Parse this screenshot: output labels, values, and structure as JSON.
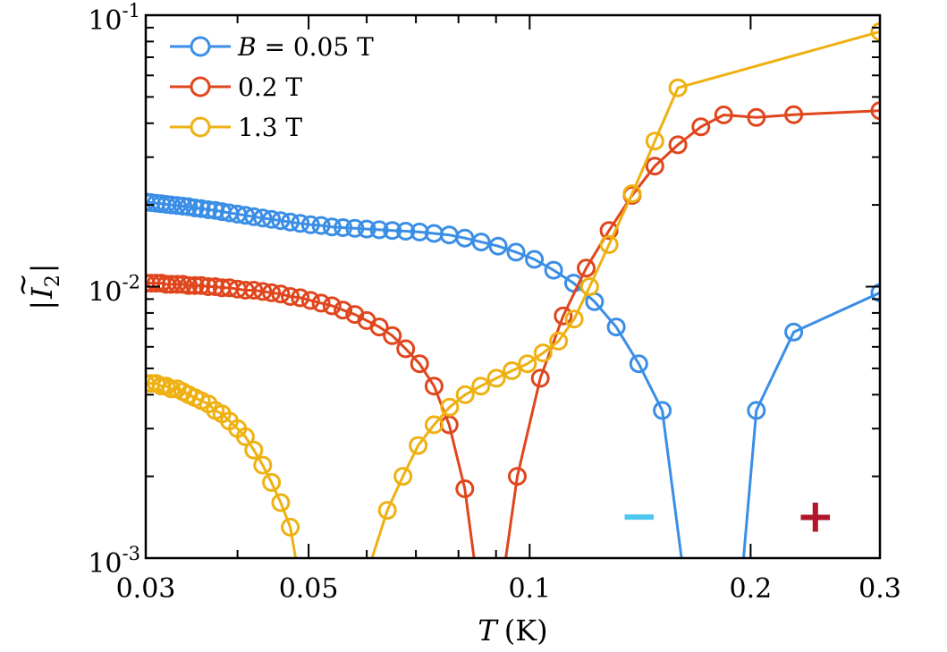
{
  "chart_data": {
    "type": "line",
    "title": "",
    "xlabel_var": "T",
    "xlabel_unit": "(K)",
    "ylabel_bar": "|",
    "ylabel_tilde": "~",
    "ylabel_var": "I",
    "ylabel_sub": "2",
    "xscale": "log",
    "yscale": "log",
    "xlim": [
      0.03,
      0.3
    ],
    "ylim": [
      0.001,
      0.1
    ],
    "x_ticks": [
      {
        "value": 0.03,
        "label": "0.03"
      },
      {
        "value": 0.05,
        "label": "0.05"
      },
      {
        "value": 0.1,
        "label": "0.1"
      },
      {
        "value": 0.2,
        "label": "0.2"
      },
      {
        "value": 0.3,
        "label": "0.3"
      }
    ],
    "y_ticks": [
      {
        "value": 0.1,
        "base": "10",
        "exp": "-1"
      },
      {
        "value": 0.01,
        "base": "10",
        "exp": "-2"
      },
      {
        "value": 0.001,
        "base": "10",
        "exp": "-3"
      }
    ],
    "legend_position": "top-left",
    "series": [
      {
        "name": "B = 0.05 T",
        "legend_var": "B",
        "legend_rest": " = 0.05 T",
        "color": "#3a8ee6",
        "points": [
          [
            0.03,
            0.0205
          ],
          [
            0.0305,
            0.0204
          ],
          [
            0.031,
            0.0203
          ],
          [
            0.0315,
            0.0202
          ],
          [
            0.032,
            0.0201
          ],
          [
            0.0325,
            0.02
          ],
          [
            0.0331,
            0.0199
          ],
          [
            0.0337,
            0.0198
          ],
          [
            0.0343,
            0.0197
          ],
          [
            0.035,
            0.0195
          ],
          [
            0.0357,
            0.0194
          ],
          [
            0.0365,
            0.0192
          ],
          [
            0.0373,
            0.0191
          ],
          [
            0.0381,
            0.0189
          ],
          [
            0.039,
            0.0187
          ],
          [
            0.04,
            0.0185
          ],
          [
            0.041,
            0.0183
          ],
          [
            0.0421,
            0.0181
          ],
          [
            0.0433,
            0.0179
          ],
          [
            0.0445,
            0.0177
          ],
          [
            0.0458,
            0.0175
          ],
          [
            0.0472,
            0.0173
          ],
          [
            0.0487,
            0.0171
          ],
          [
            0.0503,
            0.0169
          ],
          [
            0.052,
            0.0168
          ],
          [
            0.0538,
            0.0166
          ],
          [
            0.0557,
            0.0165
          ],
          [
            0.0578,
            0.0164
          ],
          [
            0.06,
            0.0163
          ],
          [
            0.0624,
            0.0162
          ],
          [
            0.065,
            0.0161
          ],
          [
            0.0678,
            0.016
          ],
          [
            0.0708,
            0.0159
          ],
          [
            0.0741,
            0.0157
          ],
          [
            0.0777,
            0.0155
          ],
          [
            0.0816,
            0.0151
          ],
          [
            0.0859,
            0.0146
          ],
          [
            0.0906,
            0.0141
          ],
          [
            0.0958,
            0.0134
          ],
          [
            0.1015,
            0.0126
          ],
          [
            0.1078,
            0.0115
          ],
          [
            0.1148,
            0.0103
          ],
          [
            0.1226,
            0.0088
          ],
          [
            0.1312,
            0.0071
          ],
          [
            0.1408,
            0.0052
          ],
          [
            0.1516,
            0.0035
          ],
          [
            0.161,
            0.001
          ]
        ],
        "points_after": [
          [
            0.1956,
            0.001
          ],
          [
            0.2036,
            0.0035
          ],
          [
            0.2289,
            0.0068
          ],
          [
            0.3,
            0.0095
          ]
        ]
      },
      {
        "name": "0.2 T",
        "legend_var": "",
        "legend_rest": "0.2 T",
        "color": "#e0461d",
        "points": [
          [
            0.03,
            0.0103
          ],
          [
            0.0305,
            0.0103
          ],
          [
            0.031,
            0.0103
          ],
          [
            0.0315,
            0.0103
          ],
          [
            0.032,
            0.0102
          ],
          [
            0.0325,
            0.0102
          ],
          [
            0.0331,
            0.0102
          ],
          [
            0.0337,
            0.0102
          ],
          [
            0.0343,
            0.0101
          ],
          [
            0.035,
            0.0101
          ],
          [
            0.0357,
            0.0101
          ],
          [
            0.0365,
            0.01
          ],
          [
            0.0373,
            0.01
          ],
          [
            0.0381,
            0.0099
          ],
          [
            0.039,
            0.0099
          ],
          [
            0.04,
            0.0098
          ],
          [
            0.041,
            0.0097
          ],
          [
            0.0421,
            0.0097
          ],
          [
            0.0433,
            0.0096
          ],
          [
            0.0445,
            0.0095
          ],
          [
            0.0458,
            0.0094
          ],
          [
            0.0472,
            0.0092
          ],
          [
            0.0487,
            0.0091
          ],
          [
            0.0503,
            0.0089
          ],
          [
            0.052,
            0.0087
          ],
          [
            0.0538,
            0.0085
          ],
          [
            0.0557,
            0.0082
          ],
          [
            0.0578,
            0.0079
          ],
          [
            0.06,
            0.0075
          ],
          [
            0.0624,
            0.0071
          ],
          [
            0.065,
            0.0066
          ],
          [
            0.0678,
            0.0059
          ],
          [
            0.0708,
            0.0052
          ],
          [
            0.0741,
            0.0043
          ],
          [
            0.0777,
            0.0031
          ],
          [
            0.0816,
            0.0018
          ],
          [
            0.084,
            0.001
          ]
        ],
        "points_after": [
          [
            0.0928,
            0.001
          ],
          [
            0.0962,
            0.002
          ],
          [
            0.1034,
            0.0046
          ],
          [
            0.1111,
            0.0078
          ],
          [
            0.1194,
            0.0117
          ],
          [
            0.1283,
            0.0161
          ],
          [
            0.1379,
            0.0217
          ],
          [
            0.1481,
            0.0278
          ],
          [
            0.1592,
            0.0333
          ],
          [
            0.1711,
            0.0388
          ],
          [
            0.1838,
            0.0429
          ],
          [
            0.2036,
            0.042
          ],
          [
            0.2289,
            0.043
          ],
          [
            0.3,
            0.0445
          ]
        ]
      },
      {
        "name": "1.3 T",
        "legend_var": "",
        "legend_rest": "1.3 T",
        "color": "#eeb111",
        "points": [
          [
            0.03,
            0.0044
          ],
          [
            0.0305,
            0.0044
          ],
          [
            0.031,
            0.0044
          ],
          [
            0.0315,
            0.0043
          ],
          [
            0.032,
            0.0043
          ],
          [
            0.0325,
            0.0042
          ],
          [
            0.0331,
            0.0042
          ],
          [
            0.0337,
            0.0041
          ],
          [
            0.0343,
            0.004
          ],
          [
            0.035,
            0.0039
          ],
          [
            0.0357,
            0.0038
          ],
          [
            0.0365,
            0.0037
          ],
          [
            0.0373,
            0.0035
          ],
          [
            0.0381,
            0.0034
          ],
          [
            0.039,
            0.0032
          ],
          [
            0.04,
            0.003
          ],
          [
            0.041,
            0.0028
          ],
          [
            0.0421,
            0.0025
          ],
          [
            0.0433,
            0.0022
          ],
          [
            0.0445,
            0.0019
          ],
          [
            0.0458,
            0.0016
          ],
          [
            0.0472,
            0.0013
          ],
          [
            0.048,
            0.001
          ]
        ],
        "points_after": [
          [
            0.061,
            0.001
          ],
          [
            0.064,
            0.0015
          ],
          [
            0.0672,
            0.002
          ],
          [
            0.0705,
            0.0026
          ],
          [
            0.0741,
            0.0031
          ],
          [
            0.0778,
            0.0036
          ],
          [
            0.0817,
            0.004
          ],
          [
            0.0858,
            0.0043
          ],
          [
            0.0901,
            0.0046
          ],
          [
            0.0946,
            0.0049
          ],
          [
            0.0993,
            0.0052
          ],
          [
            0.1043,
            0.0057
          ],
          [
            0.1095,
            0.0063
          ],
          [
            0.115,
            0.0076
          ],
          [
            0.1207,
            0.01
          ],
          [
            0.1283,
            0.0143
          ],
          [
            0.1379,
            0.022
          ],
          [
            0.1481,
            0.0344
          ],
          [
            0.1592,
            0.054
          ],
          [
            0.3,
            0.087
          ]
        ]
      }
    ],
    "annotations": [
      {
        "text": "−",
        "x": 0.141,
        "y": 0.00139,
        "color": "#4fc8f0"
      },
      {
        "text": "+",
        "x": 0.245,
        "y": 0.00139,
        "color": "#b2162a"
      }
    ]
  }
}
